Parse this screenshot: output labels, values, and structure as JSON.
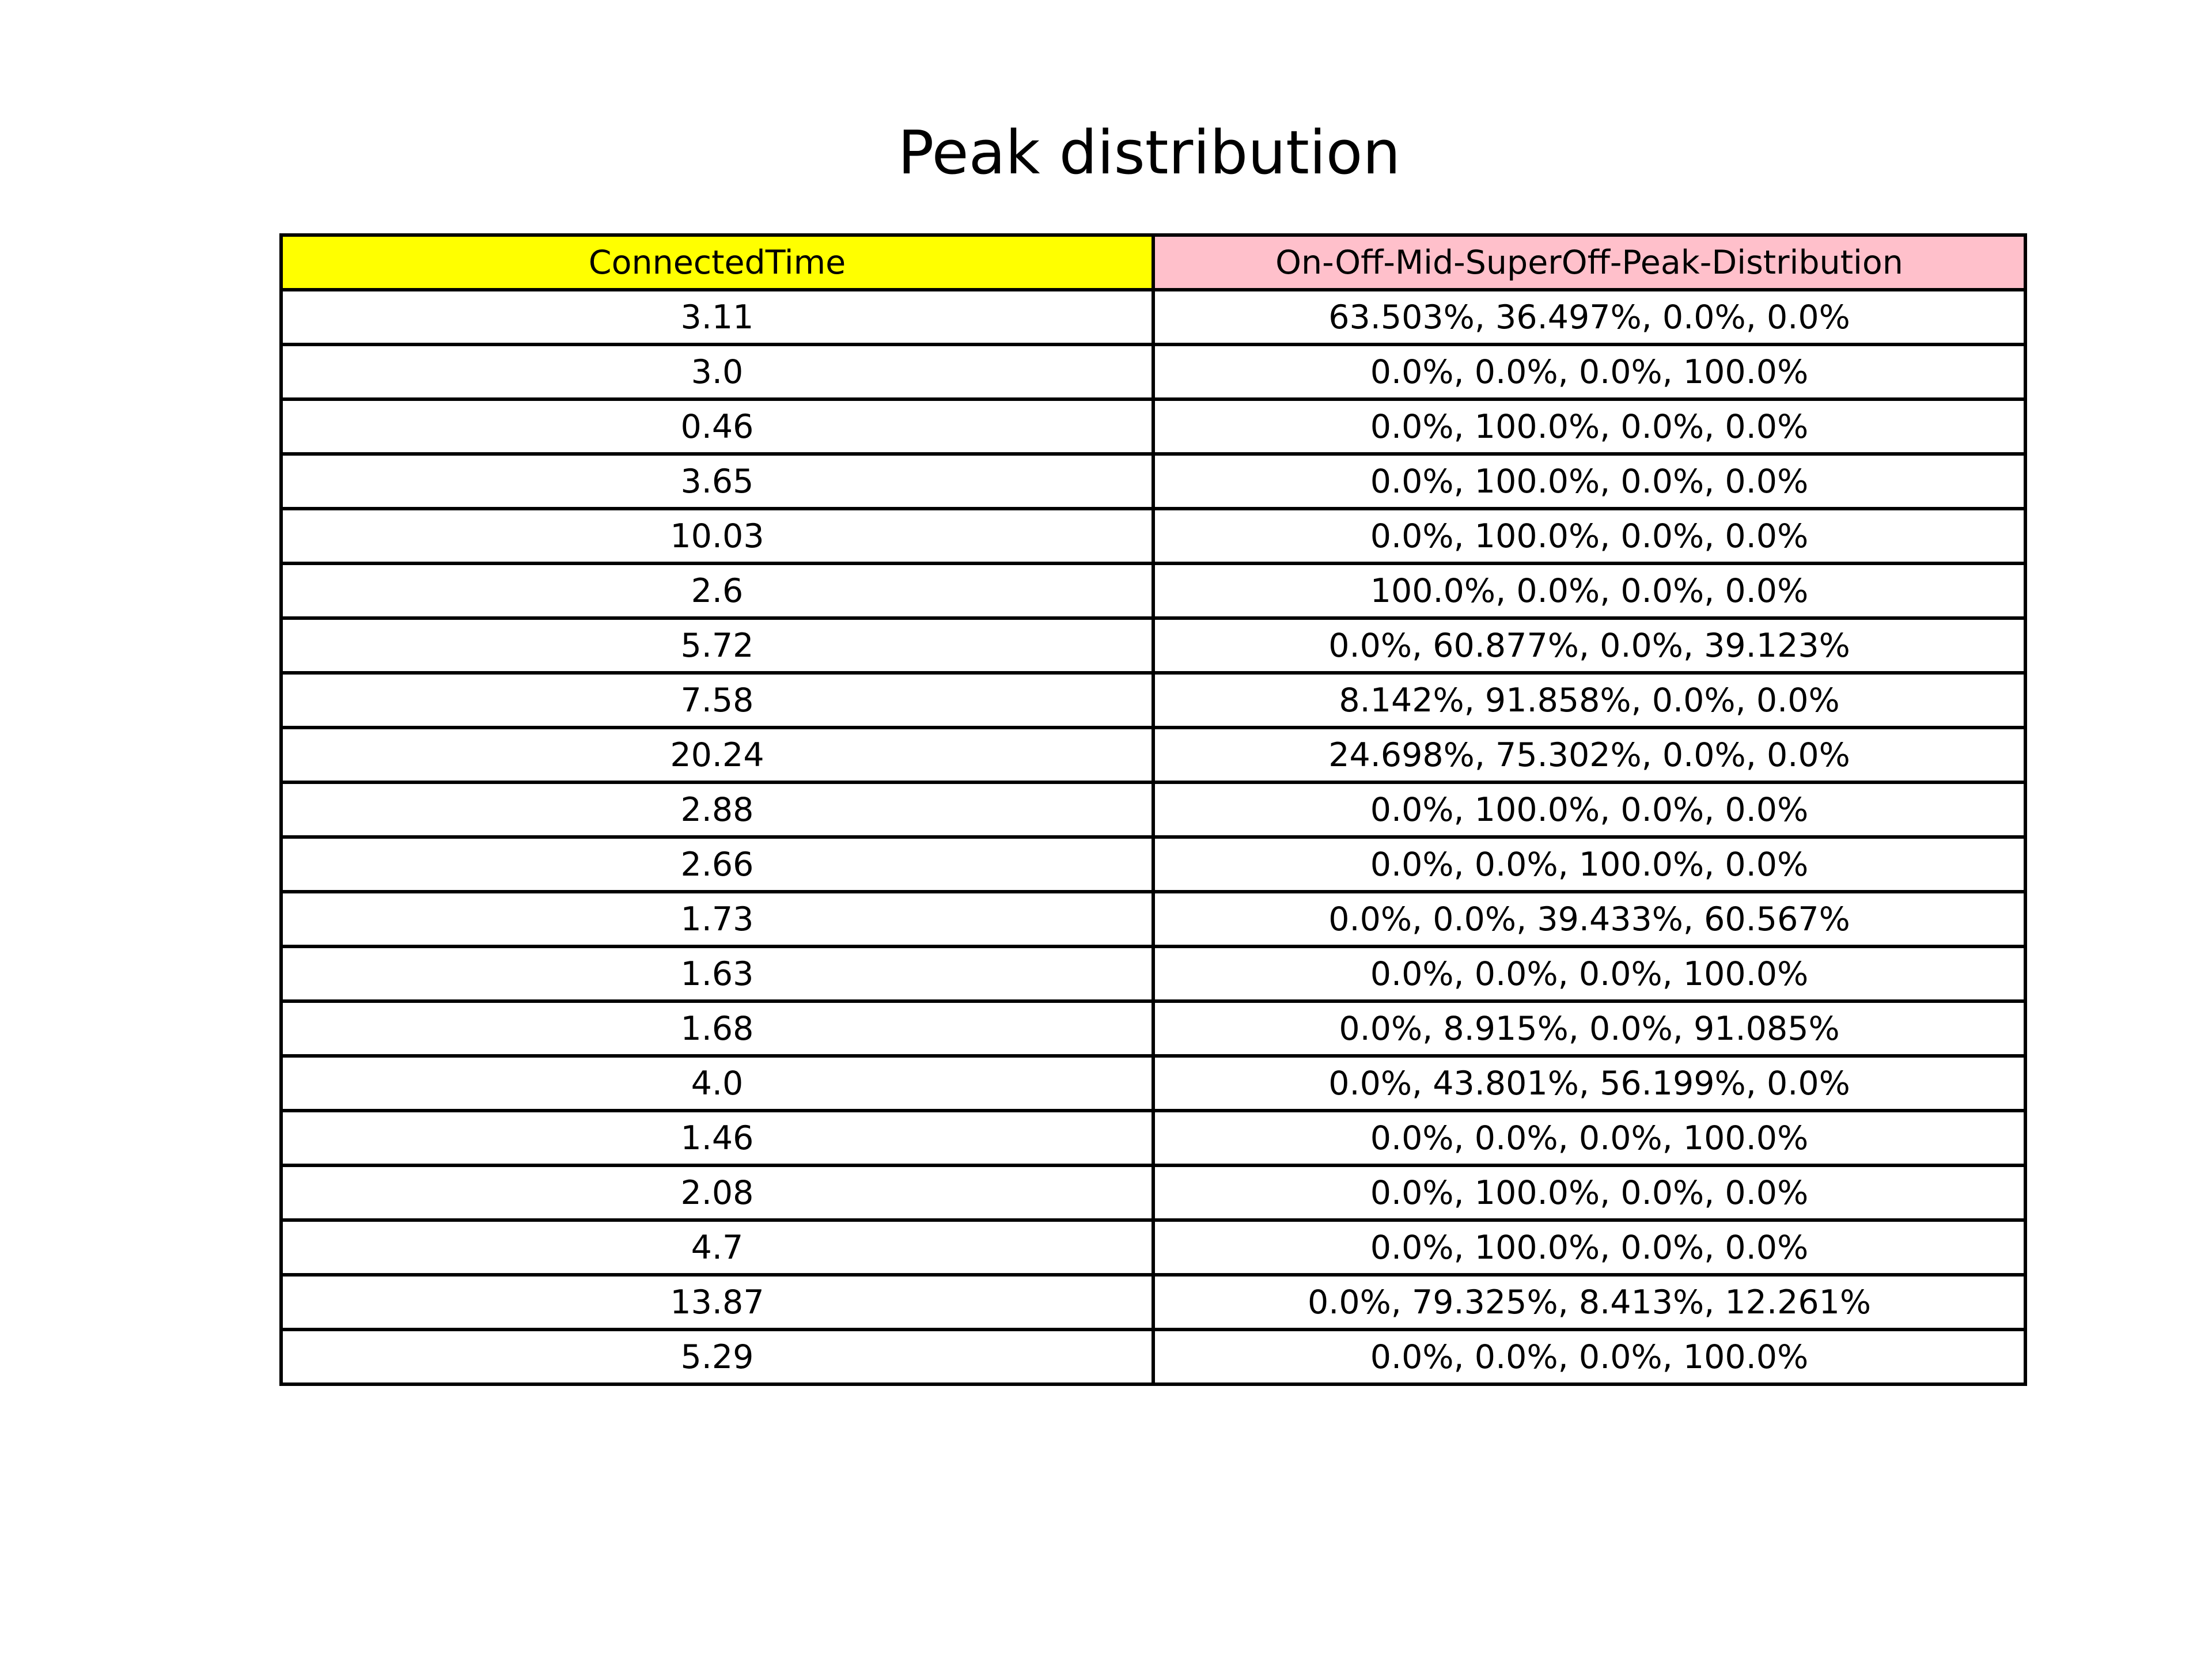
{
  "chart_data": {
    "type": "table",
    "title": "Peak distribution",
    "columns": [
      {
        "label": "ConnectedTime",
        "color": "#ffff00"
      },
      {
        "label": "On-Off-Mid-SuperOff-Peak-Distribution",
        "color": "#ffc0cb"
      }
    ],
    "rows": [
      {
        "connected_time": "3.11",
        "distribution": "63.503%, 36.497%, 0.0%, 0.0%"
      },
      {
        "connected_time": "3.0",
        "distribution": "0.0%, 0.0%, 0.0%, 100.0%"
      },
      {
        "connected_time": "0.46",
        "distribution": "0.0%, 100.0%, 0.0%, 0.0%"
      },
      {
        "connected_time": "3.65",
        "distribution": "0.0%, 100.0%, 0.0%, 0.0%"
      },
      {
        "connected_time": "10.03",
        "distribution": "0.0%, 100.0%, 0.0%, 0.0%"
      },
      {
        "connected_time": "2.6",
        "distribution": "100.0%, 0.0%, 0.0%, 0.0%"
      },
      {
        "connected_time": "5.72",
        "distribution": "0.0%, 60.877%, 0.0%, 39.123%"
      },
      {
        "connected_time": "7.58",
        "distribution": "8.142%, 91.858%, 0.0%, 0.0%"
      },
      {
        "connected_time": "20.24",
        "distribution": "24.698%, 75.302%, 0.0%, 0.0%"
      },
      {
        "connected_time": "2.88",
        "distribution": "0.0%, 100.0%, 0.0%, 0.0%"
      },
      {
        "connected_time": "2.66",
        "distribution": "0.0%, 0.0%, 100.0%, 0.0%"
      },
      {
        "connected_time": "1.73",
        "distribution": "0.0%, 0.0%, 39.433%, 60.567%"
      },
      {
        "connected_time": "1.63",
        "distribution": "0.0%, 0.0%, 0.0%, 100.0%"
      },
      {
        "connected_time": "1.68",
        "distribution": "0.0%, 8.915%, 0.0%, 91.085%"
      },
      {
        "connected_time": "4.0",
        "distribution": "0.0%, 43.801%, 56.199%, 0.0%"
      },
      {
        "connected_time": "1.46",
        "distribution": "0.0%, 0.0%, 0.0%, 100.0%"
      },
      {
        "connected_time": "2.08",
        "distribution": "0.0%, 100.0%, 0.0%, 0.0%"
      },
      {
        "connected_time": "4.7",
        "distribution": "0.0%, 100.0%, 0.0%, 0.0%"
      },
      {
        "connected_time": "13.87",
        "distribution": "0.0%, 79.325%, 8.413%, 12.261%"
      },
      {
        "connected_time": "5.29",
        "distribution": "0.0%, 0.0%, 0.0%, 100.0%"
      }
    ]
  }
}
